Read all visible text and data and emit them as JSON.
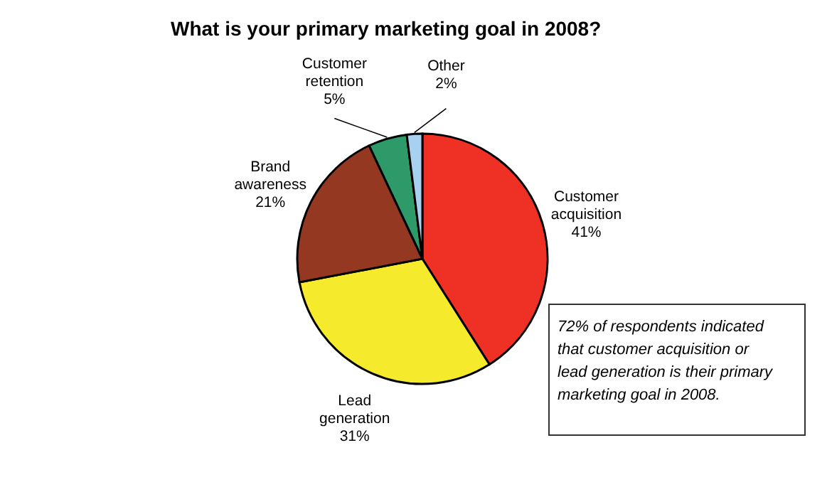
{
  "chart_data": {
    "type": "pie",
    "title": "What is your primary marketing goal in 2008?",
    "categories": [
      "Customer acquisition",
      "Lead generation",
      "Brand awareness",
      "Customer retention",
      "Other"
    ],
    "values": [
      41,
      31,
      21,
      5,
      2
    ],
    "colors": [
      "#ee3124",
      "#f5ea2c",
      "#953822",
      "#2e9a6a",
      "#a8d0f0"
    ],
    "value_labels": [
      "41%",
      "31%",
      "21%",
      "5%",
      "2%"
    ],
    "legend": false,
    "annotations": [
      "72% of respondents indicated that customer acquisition or lead generation is their primary marketing goal in 2008."
    ]
  }
}
